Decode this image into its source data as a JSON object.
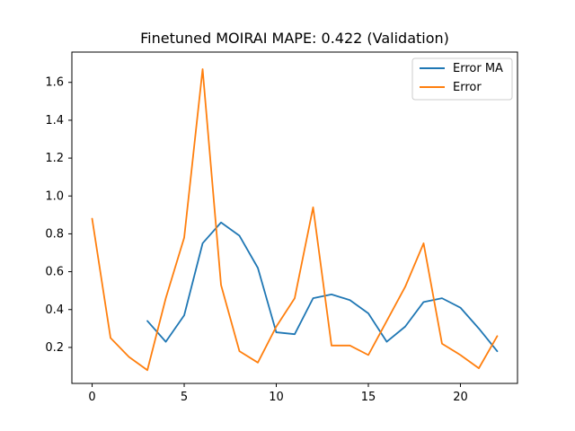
{
  "chart_data": {
    "type": "line",
    "title": "Finetuned MOIRAI MAPE: 0.422 (Validation)",
    "xlabel": "",
    "ylabel": "",
    "xlim": [
      -1.1,
      23.1
    ],
    "ylim": [
      0.01,
      1.76
    ],
    "grid": false,
    "legend_position": "top-right",
    "x_ticks": [
      0,
      5,
      10,
      15,
      20
    ],
    "y_ticks": [
      0.2,
      0.4,
      0.6,
      0.8,
      1.0,
      1.2,
      1.4,
      1.6
    ],
    "x_tick_labels": [
      "0",
      "5",
      "10",
      "15",
      "20"
    ],
    "y_tick_labels": [
      "0.2",
      "0.4",
      "0.6",
      "0.8",
      "1.0",
      "1.2",
      "1.4",
      "1.6"
    ],
    "series": [
      {
        "name": "Error MA",
        "color": "#1f77b4",
        "x": [
          3,
          4,
          5,
          6,
          7,
          8,
          9,
          10,
          11,
          12,
          13,
          14,
          15,
          16,
          17,
          18,
          19,
          20,
          21,
          22
        ],
        "y": [
          0.34,
          0.23,
          0.37,
          0.75,
          0.86,
          0.79,
          0.62,
          0.28,
          0.27,
          0.46,
          0.48,
          0.45,
          0.38,
          0.23,
          0.31,
          0.44,
          0.46,
          0.41,
          0.3,
          0.18
        ]
      },
      {
        "name": "Error",
        "color": "#ff7f0e",
        "x": [
          0,
          1,
          2,
          3,
          4,
          5,
          6,
          7,
          8,
          9,
          10,
          11,
          12,
          13,
          14,
          15,
          16,
          17,
          18,
          19,
          20,
          21,
          22
        ],
        "y": [
          0.88,
          0.25,
          0.15,
          0.08,
          0.46,
          0.78,
          1.67,
          0.53,
          0.18,
          0.12,
          0.31,
          0.46,
          0.94,
          0.21,
          0.21,
          0.16,
          0.34,
          0.52,
          0.75,
          0.22,
          0.16,
          0.09,
          0.26
        ]
      }
    ]
  }
}
